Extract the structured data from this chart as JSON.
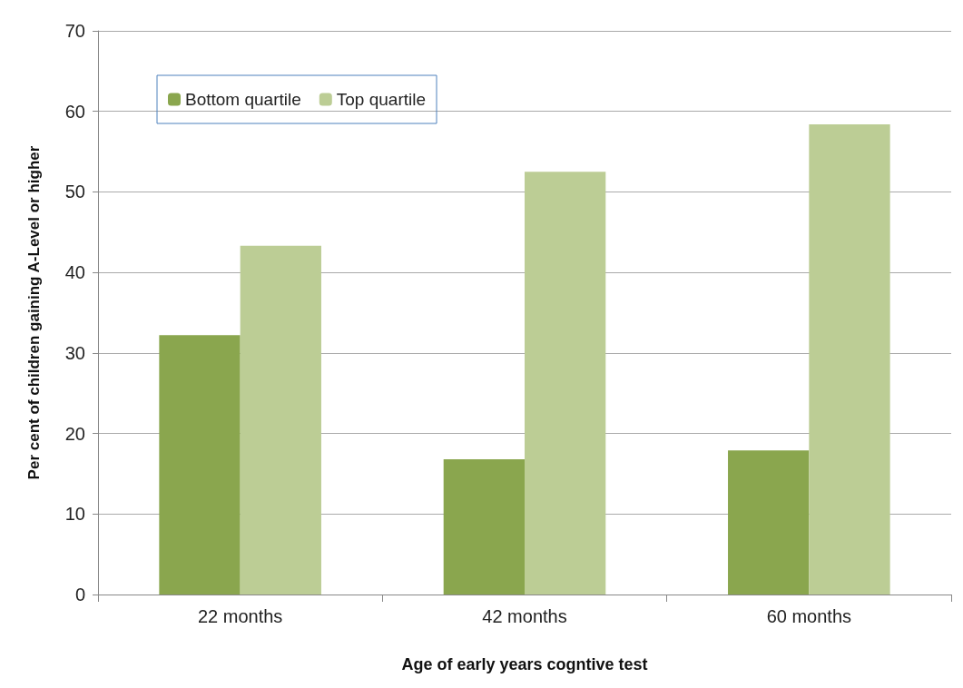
{
  "chart_data": {
    "type": "bar",
    "xlabel": "Age of early years cogntive test",
    "ylabel": "Per cent of children gaining A-Level or higher",
    "categories": [
      "22 months",
      "42 months",
      "60 months"
    ],
    "series": [
      {
        "name": "Bottom quartile",
        "color": "#8aa64e",
        "values": [
          32.2,
          16.8,
          17.9
        ]
      },
      {
        "name": "Top quartile",
        "color": "#bccd95",
        "values": [
          43.3,
          52.5,
          58.4
        ]
      }
    ],
    "ylim": [
      0,
      70
    ],
    "yticks": [
      0,
      10,
      20,
      30,
      40,
      50,
      60,
      70
    ],
    "grid": "y",
    "legend": "top left"
  }
}
